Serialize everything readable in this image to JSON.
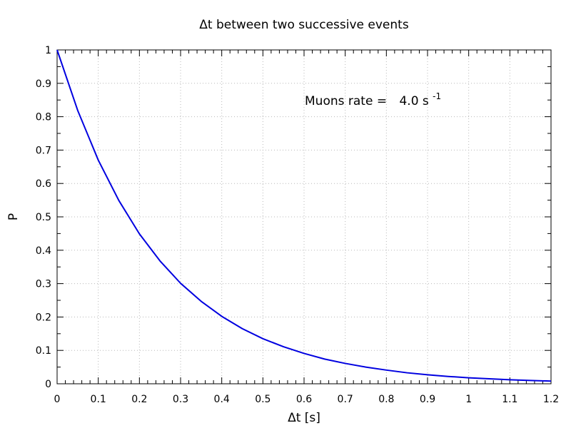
{
  "chart_data": {
    "type": "line",
    "title": "Δt between two successive events",
    "xlabel": "Δt [s]",
    "ylabel": "P",
    "xlim": [
      0,
      1.2
    ],
    "ylim": [
      0,
      1
    ],
    "x_ticks": [
      "0",
      "0.1",
      "0.2",
      "0.3",
      "0.4",
      "0.5",
      "0.6",
      "0.7",
      "0.8",
      "0.9",
      "1",
      "1.1",
      "1.2"
    ],
    "y_ticks": [
      "0",
      "0.1",
      "0.2",
      "0.3",
      "0.4",
      "0.5",
      "0.6",
      "0.7",
      "0.8",
      "0.9",
      "1"
    ],
    "grid": true,
    "series": [
      {
        "color": "#0000e0",
        "x": [
          0,
          0.05,
          0.1,
          0.15,
          0.2,
          0.25,
          0.3,
          0.35,
          0.4,
          0.45,
          0.5,
          0.55,
          0.6,
          0.65,
          0.7,
          0.75,
          0.8,
          0.85,
          0.9,
          0.95,
          1.0,
          1.05,
          1.1,
          1.15,
          1.2
        ],
        "y": [
          1.0,
          0.819,
          0.67,
          0.549,
          0.449,
          0.368,
          0.301,
          0.247,
          0.202,
          0.165,
          0.135,
          0.111,
          0.091,
          0.074,
          0.061,
          0.05,
          0.041,
          0.033,
          0.027,
          0.022,
          0.018,
          0.015,
          0.012,
          0.01,
          0.008
        ]
      }
    ],
    "annotation": {
      "label": "Muons rate = ",
      "value": "4.0 s",
      "superscript": "-1"
    }
  }
}
